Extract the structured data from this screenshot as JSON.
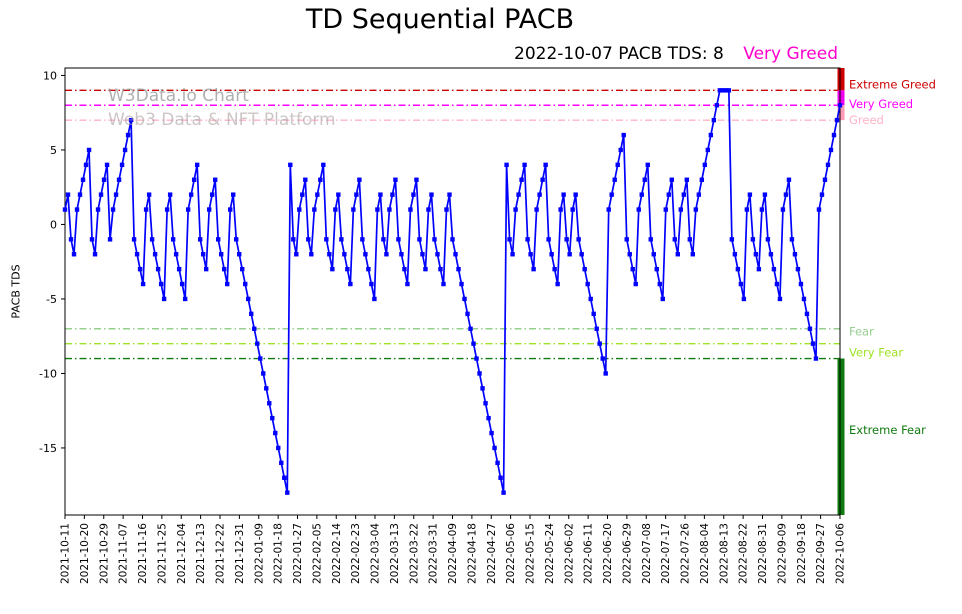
{
  "chart_data": {
    "type": "line",
    "title": "TD Sequential PACB",
    "subtitle": {
      "left": "2022-10-07 PACB TDS: 8",
      "right": "Very Greed",
      "right_color": "#ff00cc"
    },
    "ylabel": "PACB TDS",
    "ylim": [
      -19.5,
      10.5
    ],
    "y_ticks": [
      10,
      5,
      0,
      -5,
      -10,
      -15
    ],
    "x_tick_labels": [
      "2021-10-11",
      "2021-10-20",
      "2021-10-29",
      "2021-11-07",
      "2021-11-16",
      "2021-11-25",
      "2021-12-04",
      "2021-12-13",
      "2021-12-22",
      "2021-12-31",
      "2022-01-09",
      "2022-01-18",
      "2022-01-27",
      "2022-02-05",
      "2022-02-14",
      "2022-02-23",
      "2022-03-04",
      "2022-03-13",
      "2022-03-22",
      "2022-03-31",
      "2022-04-09",
      "2022-04-18",
      "2022-04-27",
      "2022-05-06",
      "2022-05-15",
      "2022-05-24",
      "2022-06-02",
      "2022-06-11",
      "2022-06-20",
      "2022-06-29",
      "2022-07-08",
      "2022-07-17",
      "2022-07-26",
      "2022-08-04",
      "2022-08-13",
      "2022-08-22",
      "2022-08-31",
      "2022-09-09",
      "2022-09-18",
      "2022-09-27",
      "2022-10-06"
    ],
    "series": {
      "name": "PACB TDS",
      "color": "#0000ff",
      "values": [
        1,
        2,
        -1,
        -2,
        1,
        2,
        3,
        4,
        5,
        -1,
        -2,
        1,
        2,
        3,
        4,
        -1,
        1,
        2,
        3,
        4,
        5,
        6,
        7,
        -1,
        -2,
        -3,
        -4,
        1,
        2,
        -1,
        -2,
        -3,
        -4,
        -5,
        1,
        2,
        -1,
        -2,
        -3,
        -4,
        -5,
        1,
        2,
        3,
        4,
        -1,
        -2,
        -3,
        1,
        2,
        3,
        -1,
        -2,
        -3,
        -4,
        1,
        2,
        -1,
        -2,
        -3,
        -4,
        -5,
        -6,
        -7,
        -8,
        -9,
        -10,
        -11,
        -12,
        -13,
        -14,
        -15,
        -16,
        -17,
        -18,
        4,
        -1,
        -2,
        1,
        2,
        3,
        -1,
        -2,
        1,
        2,
        3,
        4,
        -1,
        -2,
        -3,
        1,
        2,
        -1,
        -2,
        -3,
        -4,
        1,
        2,
        3,
        -1,
        -2,
        -3,
        -4,
        -5,
        1,
        2,
        -1,
        -2,
        1,
        2,
        3,
        -1,
        -2,
        -3,
        -4,
        1,
        2,
        3,
        -1,
        -2,
        -3,
        1,
        2,
        -1,
        -2,
        -3,
        -4,
        1,
        2,
        -1,
        -2,
        -3,
        -4,
        -5,
        -6,
        -7,
        -8,
        -9,
        -10,
        -11,
        -12,
        -13,
        -14,
        -15,
        -16,
        -17,
        -18,
        4,
        -1,
        -2,
        1,
        2,
        3,
        4,
        -1,
        -2,
        -3,
        1,
        2,
        3,
        4,
        -1,
        -2,
        -3,
        -4,
        1,
        2,
        -1,
        -2,
        1,
        2,
        -1,
        -2,
        -3,
        -4,
        -5,
        -6,
        -7,
        -8,
        -9,
        -10,
        1,
        2,
        3,
        4,
        5,
        6,
        -1,
        -2,
        -3,
        -4,
        1,
        2,
        3,
        4,
        -1,
        -2,
        -3,
        -4,
        -5,
        1,
        2,
        3,
        -1,
        -2,
        1,
        2,
        3,
        -1,
        -2,
        1,
        2,
        3,
        4,
        5,
        6,
        7,
        8,
        9,
        9,
        9,
        9,
        -1,
        -2,
        -3,
        -4,
        -5,
        1,
        2,
        -1,
        -2,
        -3,
        1,
        2,
        -1,
        -2,
        -3,
        -4,
        -5,
        1,
        2,
        3,
        -1,
        -2,
        -3,
        -4,
        -5,
        -6,
        -7,
        -8,
        -9,
        1,
        2,
        3,
        4,
        5,
        6,
        7,
        8
      ]
    },
    "thresholds": [
      {
        "value": 9,
        "color": "#cc0000",
        "label": "Extreme Greed",
        "label_y": 9.4
      },
      {
        "value": 8,
        "color": "#ff00ff",
        "label": "Very Greed",
        "label_y": 8.1
      },
      {
        "value": 7,
        "color": "#ffb3c6",
        "label": "Greed",
        "label_y": 7.0
      },
      {
        "value": -7,
        "color": "#97cf8f",
        "label": "Fear",
        "label_y": -7.2
      },
      {
        "value": -8,
        "color": "#9ee326",
        "label": "Very Fear",
        "label_y": -8.6
      },
      {
        "value": -9,
        "color": "#0f7a0f",
        "label": "Extreme Fear",
        "label_y": -13.8
      }
    ],
    "side_bars": [
      {
        "from": 10.5,
        "to": 9,
        "color": "#cc0000"
      },
      {
        "from": 9,
        "to": 8,
        "color": "#ee00ee"
      },
      {
        "from": 8,
        "to": 7,
        "color": "#ff9ab5"
      },
      {
        "from": -9,
        "to": -19.5,
        "color": "#0f7a0f"
      }
    ],
    "watermark": {
      "line1": "W3Data.io Chart",
      "line2": "Web3 Data & NFT Platform"
    },
    "grid": "off",
    "legend": "none"
  }
}
